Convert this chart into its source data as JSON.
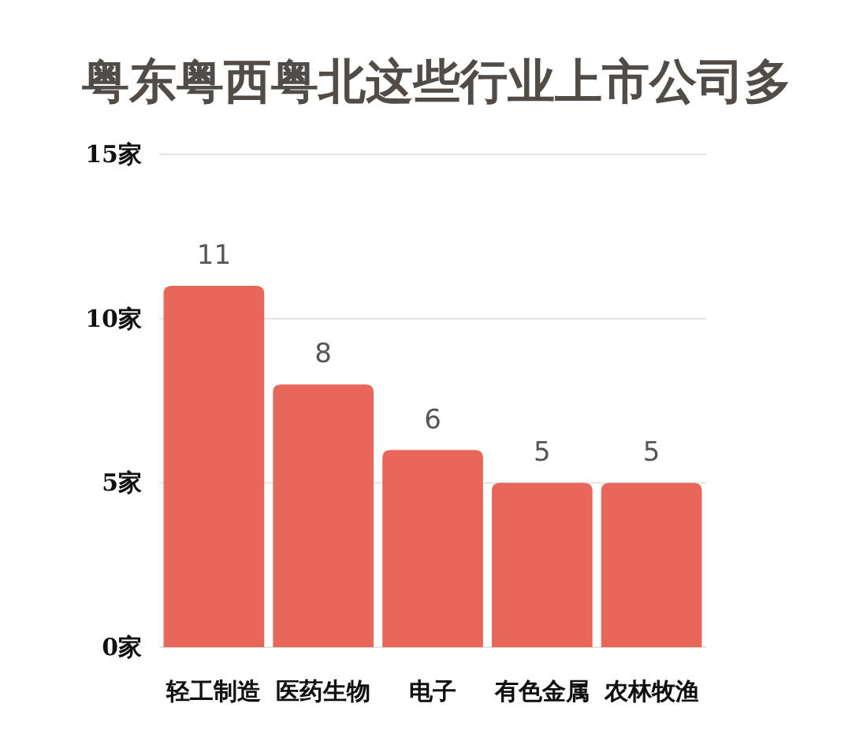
{
  "chart_data": {
    "type": "bar",
    "title": "粤东粤西粤北这些行业上市公司多",
    "categories": [
      "轻工制造",
      "医药生物",
      "电子",
      "有色金属",
      "农林牧渔"
    ],
    "values": [
      11,
      8,
      6,
      5,
      5
    ],
    "color": "#e8675a",
    "ylim": [
      0,
      15
    ],
    "yticks": [
      {
        "value": 0,
        "label": "0家"
      },
      {
        "value": 5,
        "label": "5家"
      },
      {
        "value": 10,
        "label": "10家"
      },
      {
        "value": 15,
        "label": "15家"
      }
    ],
    "grid": "y",
    "data_labels": true
  }
}
